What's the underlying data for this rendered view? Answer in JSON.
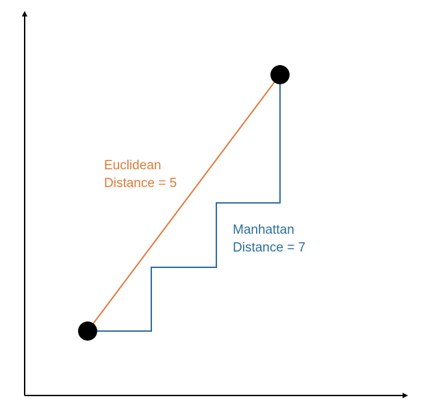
{
  "colors": {
    "axis": "#000000",
    "euclidean": "#e07b39",
    "manhattan": "#2e6e9e",
    "point": "#000000"
  },
  "euclidean_label": {
    "line1": "Euclidean",
    "line2": "Distance = 5"
  },
  "manhattan_label": {
    "line1": "Manhattan",
    "line2": "Distance = 7"
  }
}
